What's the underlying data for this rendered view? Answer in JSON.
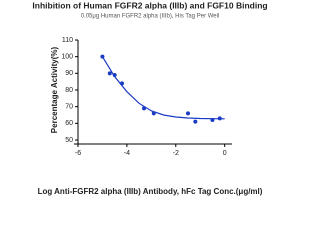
{
  "chart_data": {
    "type": "scatter",
    "title": "Inhibition of Human FGFR2 alpha (IIIb) and FGF10 Binding",
    "subtitle": "0.05μg Human FGFR2 alpha (IIIb), His Tag Per Well",
    "x_label": "Log Anti-FGFR2 alpha (IIIb) Antibody, hFc Tag Conc.(μg/ml)",
    "y_label": "Percentage Activity(%)",
    "points": {
      "color": "#1a3bc4",
      "x": [
        -5.0,
        -4.7,
        -4.5,
        -4.2,
        -3.3,
        -2.9,
        -1.5,
        -1.2,
        -0.5,
        -0.2
      ],
      "values": [
        100,
        90,
        89,
        84,
        69,
        66,
        66,
        61,
        62,
        63
      ]
    },
    "fit": {
      "color": "#1a3bc4",
      "x": [
        -5.0,
        -4.5,
        -4.0,
        -3.5,
        -3.0,
        -2.5,
        -2.0,
        -1.5,
        -1.0,
        -0.5,
        0.0
      ],
      "values": [
        100,
        88,
        79,
        72,
        67.5,
        65,
        63.8,
        63.2,
        62.9,
        62.8,
        62.7
      ]
    },
    "xlim": [
      -6,
      0.3
    ],
    "ylim": [
      50,
      110
    ],
    "xticks": [
      -6,
      -4,
      -2,
      0
    ],
    "yticks": [
      50,
      60,
      70,
      80,
      90,
      100,
      110
    ]
  }
}
